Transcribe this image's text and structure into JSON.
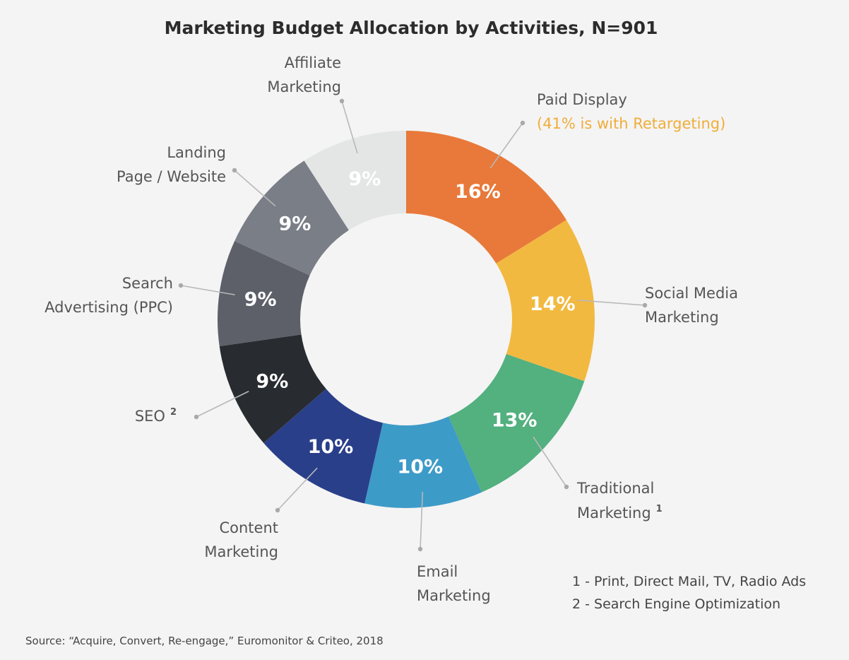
{
  "title": "Marketing Budget Allocation by Activities, N=901",
  "chart_data": {
    "type": "pie",
    "style": "donut",
    "title": "Marketing Budget Allocation by Activities, N=901",
    "unit": "%",
    "slices": [
      {
        "label": [
          "Paid Display"
        ],
        "note": "(41% is with Retargeting)",
        "value": 16,
        "display": "16%",
        "color": "#e8793a",
        "text_color": "#ffffff"
      },
      {
        "label": [
          "Social Media",
          "Marketing"
        ],
        "value": 14,
        "display": "14%",
        "color": "#f2b940",
        "text_color": "#ffffff"
      },
      {
        "label": [
          "Traditional",
          "Marketing"
        ],
        "footnote": "1",
        "value": 13,
        "display": "13%",
        "color": "#53b07f",
        "text_color": "#ffffff"
      },
      {
        "label": [
          "Email",
          "Marketing"
        ],
        "value": 10,
        "display": "10%",
        "color": "#3d9bc8",
        "text_color": "#ffffff"
      },
      {
        "label": [
          "Content",
          "Marketing"
        ],
        "value": 10,
        "display": "10%",
        "color": "#2a3f8a",
        "text_color": "#ffffff"
      },
      {
        "label": [
          "SEO"
        ],
        "footnote": "2",
        "value": 9,
        "display": "9%",
        "color": "#282b30",
        "text_color": "#ffffff"
      },
      {
        "label": [
          "Search",
          "Advertising (PPC)"
        ],
        "value": 9,
        "display": "9%",
        "color": "#5d6069",
        "text_color": "#ffffff"
      },
      {
        "label": [
          "Landing",
          "Page / Website"
        ],
        "value": 9,
        "display": "9%",
        "color": "#797e87",
        "text_color": "#ffffff"
      },
      {
        "label": [
          "Affiliate",
          "Marketing"
        ],
        "value": 9,
        "display": "9%",
        "color": "#e4e5e5",
        "text_color": "#ffffff"
      }
    ],
    "colors": {
      "note_accent": "#f0ad3a",
      "leader": "#b8b8b8"
    }
  },
  "footnotes": [
    "1 - Print, Direct Mail, TV, Radio Ads",
    "2 - Search Engine Optimization"
  ],
  "source": "Source: “Acquire, Convert, Re-engage,” Euromonitor & Criteo, 2018"
}
